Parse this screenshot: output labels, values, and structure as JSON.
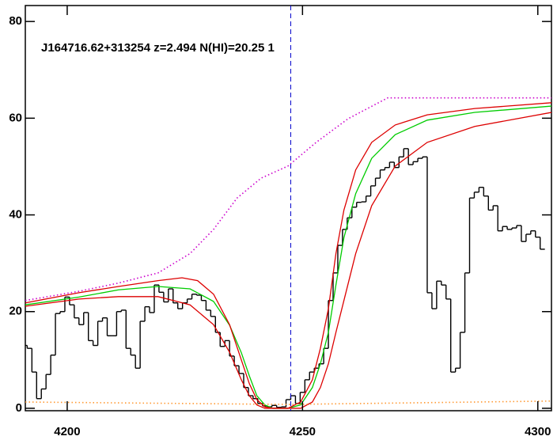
{
  "chart_data": {
    "type": "spectrum",
    "annotation": "J164716.62+313254 z=2.494 N(HI)=20.25 1",
    "xlim": [
      4191.1,
      4302.9
    ],
    "ylim": [
      -0.5,
      83.3
    ],
    "xticks": [
      4200,
      4250,
      4300
    ],
    "yticks": [
      0,
      20,
      40,
      60,
      80
    ],
    "vline": {
      "x": 4247.5,
      "color": "#0000cc"
    },
    "series": [
      {
        "style": "steps",
        "color": "#000000",
        "x": [
          4191,
          4192,
          4193,
          4194,
          4195,
          4196,
          4197,
          4198,
          4199,
          4200,
          4201,
          4202,
          4203,
          4204,
          4205,
          4206,
          4207,
          4208,
          4209,
          4210,
          4211,
          4212,
          4213,
          4214,
          4215,
          4216,
          4217,
          4218,
          4219,
          4220,
          4221,
          4222,
          4223,
          4224,
          4225,
          4226,
          4227,
          4228,
          4229,
          4230,
          4231,
          4232,
          4233,
          4234,
          4235,
          4236,
          4237,
          4238,
          4239,
          4240,
          4241,
          4242,
          4243,
          4244,
          4245,
          4246,
          4247,
          4248,
          4249,
          4250,
          4251,
          4252,
          4253,
          4254,
          4255,
          4256,
          4257,
          4258,
          4259,
          4260,
          4261,
          4262,
          4263,
          4264,
          4265,
          4266,
          4267,
          4268,
          4269,
          4270,
          4271,
          4272,
          4273,
          4274,
          4275,
          4276,
          4277,
          4278,
          4279,
          4280,
          4281,
          4282,
          4283,
          4284,
          4285,
          4286,
          4287,
          4288,
          4289,
          4290,
          4291,
          4292,
          4293,
          4294,
          4295,
          4296,
          4297,
          4298,
          4299,
          4300,
          4301
        ],
        "values": [
          13,
          12.4,
          7.5,
          2,
          4,
          7,
          11,
          19.6,
          20,
          23,
          21.4,
          18.7,
          17.3,
          19.8,
          14,
          13,
          18,
          18.7,
          15,
          15,
          20,
          20.3,
          12.4,
          11,
          8.3,
          18,
          21,
          19.8,
          25.5,
          24,
          22,
          24.7,
          21.8,
          20.6,
          21.8,
          22.6,
          23.6,
          23.4,
          22.3,
          20.3,
          19,
          15.7,
          12.8,
          14,
          10.8,
          8.8,
          7.2,
          4.3,
          2.6,
          2,
          1,
          0.5,
          0.3,
          0.6,
          0.2,
          0.3,
          1.8,
          2.6,
          1,
          3.3,
          5.9,
          7.5,
          8.3,
          9.2,
          12.4,
          22.3,
          28,
          33.7,
          37,
          39.4,
          41.6,
          42.6,
          42.7,
          43.9,
          46,
          47.6,
          49.3,
          49.8,
          50.9,
          49.8,
          52,
          53.7,
          50.4,
          51,
          51.7,
          52,
          23.9,
          20.6,
          26.3,
          25.5,
          22.6,
          7.5,
          8.3,
          15.7,
          28,
          43.5,
          44.7,
          45.7,
          43.9,
          41,
          41.9,
          36.7,
          37.6,
          37,
          37.3,
          37.8,
          34.5,
          36,
          36.7,
          35.4,
          32.9
        ]
      },
      {
        "style": "solid",
        "color": "#00cc00",
        "x": [
          4191.1,
          4202.5,
          4210.9,
          4219.3,
          4226.1,
          4231.1,
          4234.5,
          4237.0,
          4238.7,
          4240.3,
          4242.0,
          4243.7,
          4246.9,
          4249.6,
          4252.1,
          4253.8,
          4255.5,
          4257.1,
          4258.8,
          4261.3,
          4264.7,
          4269.7,
          4276.5,
          4286.6,
          4302.9
        ],
        "values": [
          21.4,
          23.0,
          24.5,
          25.2,
          24.7,
          22.1,
          17.2,
          11.5,
          6.7,
          2.6,
          0.7,
          0,
          0,
          0.7,
          4.3,
          9.2,
          15.7,
          25.5,
          35.3,
          44.4,
          51.7,
          56.6,
          59.6,
          61.2,
          62.5
        ]
      },
      {
        "style": "solid",
        "color": "#dd0000",
        "x": [
          4191.1,
          4202.5,
          4210.9,
          4219.3,
          4224.4,
          4227.7,
          4231.1,
          4234.5,
          4237.0,
          4238.7,
          4240.3,
          4242.0,
          4243.7,
          4246.9,
          4249.6,
          4252.1,
          4253.8,
          4255.5,
          4257.1,
          4258.8,
          4261.3,
          4264.7,
          4269.7,
          4276.5,
          4286.6,
          4302.9
        ],
        "values": [
          21.8,
          23.9,
          25.2,
          26.4,
          27,
          26.4,
          23.6,
          17.3,
          10,
          5.1,
          1.8,
          0.3,
          0,
          0,
          1.3,
          5.9,
          12.4,
          20.6,
          32,
          41,
          49.3,
          55,
          58.6,
          60.7,
          62,
          63.2
        ]
      },
      {
        "style": "solid",
        "color": "#dd0000",
        "x": [
          4191.1,
          4202.5,
          4210.9,
          4219.3,
          4226.1,
          4231.1,
          4234.5,
          4237.0,
          4238.7,
          4240.3,
          4242.0,
          4246.9,
          4249.6,
          4252.1,
          4253.8,
          4255.5,
          4257.1,
          4258.8,
          4261.3,
          4264.7,
          4269.7,
          4276.5,
          4286.6,
          4302.9
        ],
        "values": [
          21.1,
          22.6,
          23.1,
          23.1,
          21.4,
          17.3,
          11.6,
          5.9,
          2.6,
          0.7,
          0,
          0,
          0,
          1.3,
          4.3,
          9.2,
          15.7,
          22.3,
          32,
          41.9,
          50.1,
          55,
          58.3,
          61.2
        ]
      },
      {
        "style": "dotted",
        "color": "#cc00cc",
        "x": [
          4191.1,
          4202.5,
          4210.9,
          4219.3,
          4226.1,
          4231.1,
          4236.1,
          4241.2,
          4246.9,
          4252.9,
          4259.7,
          4268.1,
          4302.9
        ],
        "values": [
          22.3,
          24.2,
          25.9,
          28,
          32,
          37,
          43.5,
          47.6,
          50.1,
          55,
          59.9,
          64.2,
          64.2
        ]
      },
      {
        "style": "dotted",
        "color": "#ff9933",
        "x": [
          4191.1,
          4246.9,
          4302.9
        ],
        "values": [
          1.3,
          0.8,
          1.5
        ]
      }
    ]
  }
}
